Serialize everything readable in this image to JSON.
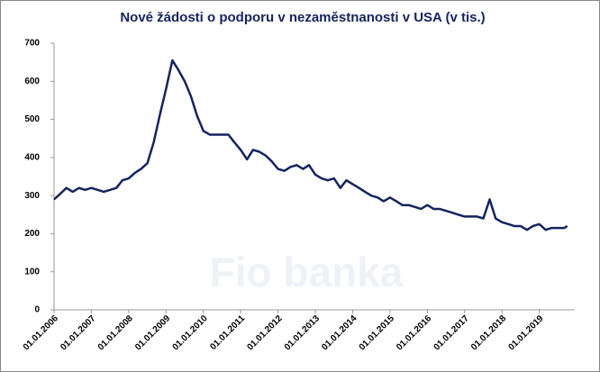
{
  "chart_data": {
    "type": "line",
    "title": "Nové žádosti o podporu v nezaměstnanosti v USA (v tis.)",
    "watermark": "Fio banka",
    "color": "#14245e",
    "x": [
      2006,
      2006.17,
      2006.33,
      2006.5,
      2006.67,
      2006.83,
      2007,
      2007.17,
      2007.33,
      2007.5,
      2007.67,
      2007.83,
      2008,
      2008.17,
      2008.33,
      2008.5,
      2008.67,
      2008.83,
      2009,
      2009.17,
      2009.33,
      2009.5,
      2009.67,
      2009.83,
      2010,
      2010.17,
      2010.33,
      2010.5,
      2010.67,
      2010.83,
      2011,
      2011.17,
      2011.33,
      2011.5,
      2011.67,
      2011.83,
      2012,
      2012.17,
      2012.33,
      2012.5,
      2012.67,
      2012.83,
      2013,
      2013.17,
      2013.33,
      2013.5,
      2013.67,
      2013.83,
      2014,
      2014.17,
      2014.33,
      2014.5,
      2014.67,
      2014.83,
      2015,
      2015.17,
      2015.33,
      2015.5,
      2015.67,
      2015.83,
      2016,
      2016.17,
      2016.33,
      2016.5,
      2016.67,
      2016.83,
      2017,
      2017.17,
      2017.33,
      2017.5,
      2017.67,
      2017.83,
      2018,
      2018.17,
      2018.33,
      2018.5,
      2018.67,
      2018.83,
      2019,
      2019.17,
      2019.33,
      2019.5,
      2019.67,
      2019.75
    ],
    "values": [
      290,
      305,
      320,
      310,
      320,
      315,
      320,
      315,
      310,
      315,
      320,
      340,
      345,
      360,
      370,
      385,
      440,
      510,
      580,
      655,
      630,
      600,
      560,
      510,
      470,
      460,
      460,
      460,
      460,
      440,
      420,
      395,
      420,
      415,
      405,
      390,
      370,
      365,
      375,
      380,
      370,
      380,
      355,
      345,
      340,
      345,
      320,
      340,
      330,
      320,
      310,
      300,
      295,
      285,
      295,
      285,
      275,
      275,
      270,
      265,
      275,
      265,
      265,
      260,
      255,
      250,
      245,
      245,
      245,
      240,
      290,
      240,
      230,
      225,
      220,
      220,
      210,
      220,
      225,
      210,
      215,
      215,
      215,
      220
    ],
    "xlim": [
      2006,
      2019.95
    ],
    "xticks": [
      {
        "value": 2006,
        "label": "01.01.2006"
      },
      {
        "value": 2007,
        "label": "01.01.2007"
      },
      {
        "value": 2008,
        "label": "01.01.2008"
      },
      {
        "value": 2009,
        "label": "01.01.2009"
      },
      {
        "value": 2010,
        "label": "01.01.2010"
      },
      {
        "value": 2011,
        "label": "01.01.2011"
      },
      {
        "value": 2012,
        "label": "01.01.2012"
      },
      {
        "value": 2013,
        "label": "01.01.2013"
      },
      {
        "value": 2014,
        "label": "01.01.2014"
      },
      {
        "value": 2015,
        "label": "01.01.2015"
      },
      {
        "value": 2016,
        "label": "01.01.2016"
      },
      {
        "value": 2017,
        "label": "01.01.2017"
      },
      {
        "value": 2018,
        "label": "01.01.2018"
      },
      {
        "value": 2019,
        "label": "01.01.2019"
      }
    ],
    "ylim": [
      0,
      700
    ],
    "yticks": [
      0,
      100,
      200,
      300,
      400,
      500,
      600,
      700
    ]
  }
}
